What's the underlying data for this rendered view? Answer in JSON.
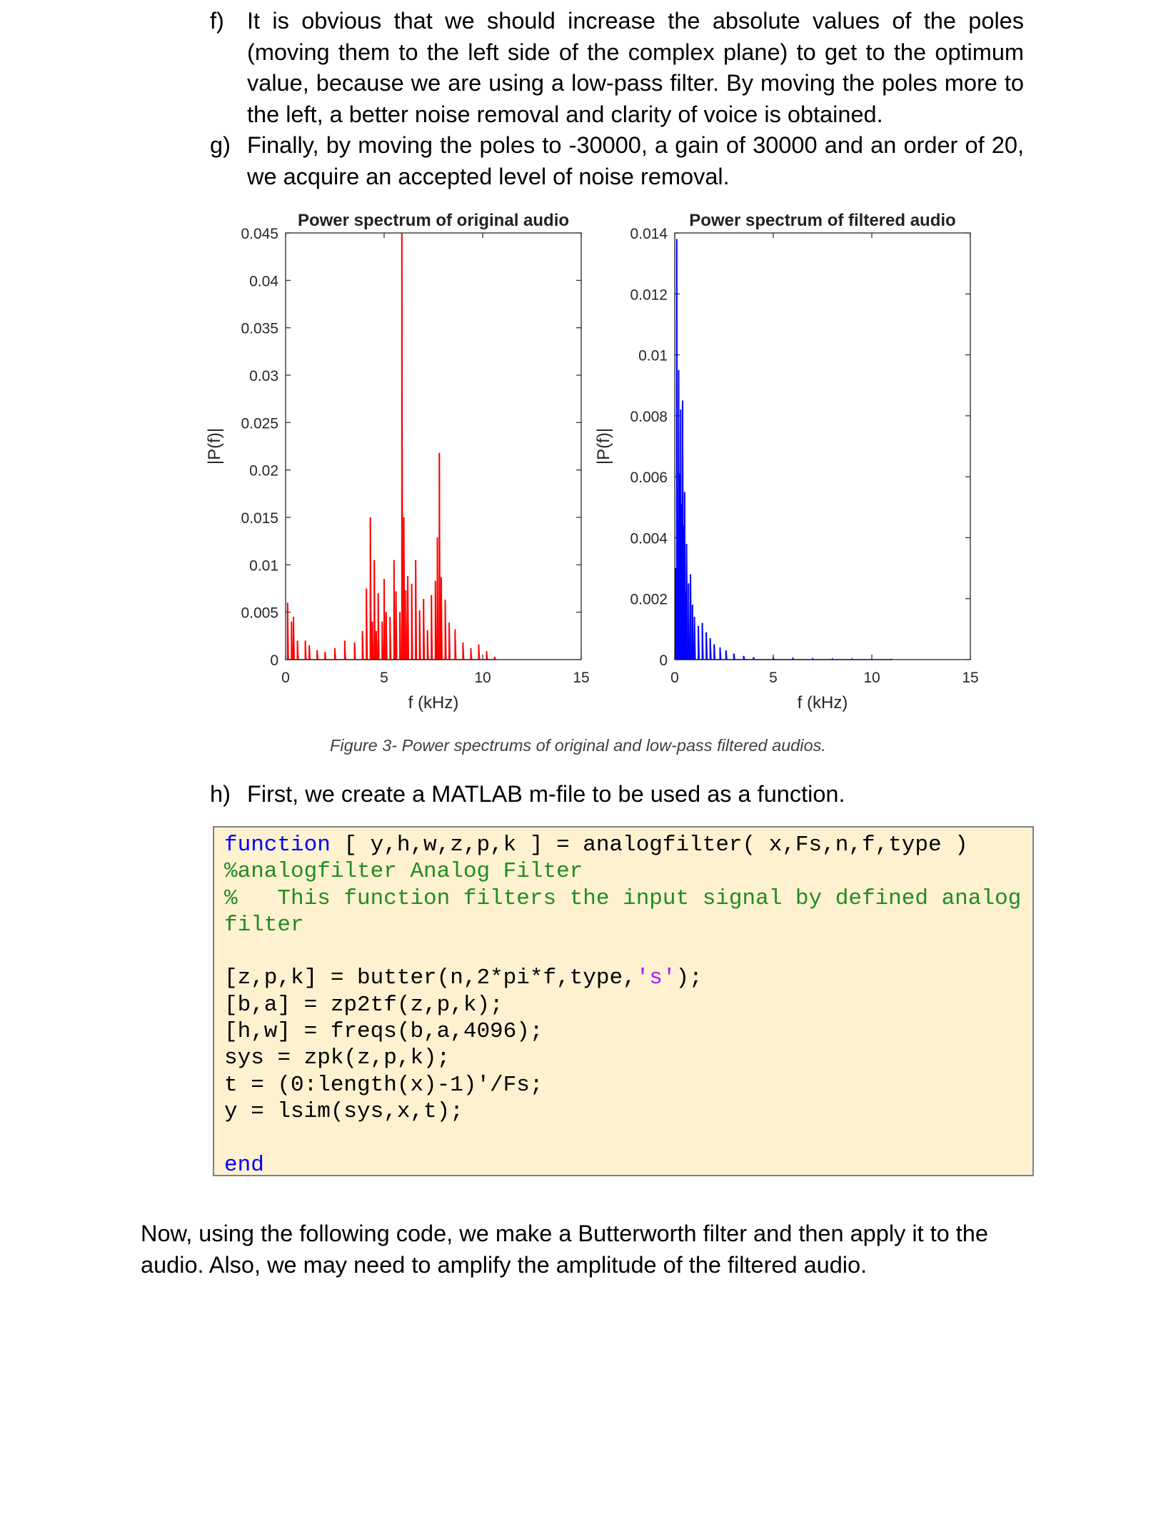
{
  "items_fg": [
    {
      "marker": "f)",
      "text": "It is obvious that we should increase the absolute values of the poles (moving them to the left side of the complex plane) to get to the optimum value, because we are using a low-pass filter. By moving the poles more to the left, a better noise removal and clarity of voice is obtained."
    },
    {
      "marker": "g)",
      "text": "Finally, by moving the poles to -30000, a gain of 30000 and an order of 20, we acquire an accepted level of noise removal."
    }
  ],
  "charts": [
    {
      "title": "Power spectrum of original audio",
      "xlabel": "f (kHz)",
      "ylabel": "|P(f)|",
      "ylim": [
        0,
        0.045
      ],
      "xlim": [
        0,
        15
      ],
      "yticks": [
        "0",
        "0.005",
        "0.01",
        "0.015",
        "0.02",
        "0.025",
        "0.03",
        "0.035",
        "0.04",
        "0.045"
      ],
      "xticks": [
        "0",
        "5",
        "10",
        "15"
      ]
    },
    {
      "title": "Power spectrum of filtered audio",
      "xlabel": "f (kHz)",
      "ylabel": "|P(f)|",
      "ylim": [
        0,
        0.014
      ],
      "xlim": [
        0,
        15
      ],
      "yticks": [
        "0",
        "0.002",
        "0.004",
        "0.006",
        "0.008",
        "0.01",
        "0.012",
        "0.014"
      ],
      "xticks": [
        "0",
        "5",
        "10",
        "15"
      ]
    }
  ],
  "chart_data": [
    {
      "type": "line",
      "title": "Power spectrum of original audio",
      "xlabel": "f (kHz)",
      "ylabel": "|P(f)|",
      "xlim": [
        0,
        15
      ],
      "ylim": [
        0,
        0.045
      ],
      "grid": false,
      "color": "#ff0000",
      "series": [
        {
          "x": [
            0.1,
            0.3,
            0.4,
            0.6,
            1.0,
            1.2,
            1.6,
            2.0,
            2.5,
            3.0,
            3.5,
            3.9,
            4.1,
            4.3,
            4.4,
            4.5,
            4.6,
            4.7,
            4.9,
            5.0,
            5.1,
            5.3,
            5.5,
            5.6,
            5.8,
            5.9,
            6.0,
            6.1,
            6.2,
            6.4,
            6.6,
            6.8,
            7.0,
            7.2,
            7.4,
            7.6,
            7.7,
            7.8,
            7.9,
            8.1,
            8.3,
            8.6,
            9.0,
            9.4,
            9.8,
            10.2,
            10.6
          ],
          "y": [
            0.006,
            0.004,
            0.0045,
            0.002,
            0.002,
            0.0015,
            0.001,
            0.0008,
            0.0012,
            0.002,
            0.0018,
            0.003,
            0.0075,
            0.015,
            0.004,
            0.0105,
            0.003,
            0.007,
            0.004,
            0.0085,
            0.005,
            0.0045,
            0.0105,
            0.0072,
            0.005,
            0.045,
            0.015,
            0.0073,
            0.0088,
            0.008,
            0.0105,
            0.0052,
            0.0064,
            0.0031,
            0.0068,
            0.0083,
            0.0129,
            0.0218,
            0.0087,
            0.0063,
            0.0039,
            0.0032,
            0.0018,
            0.0012,
            0.0016,
            0.0009,
            0.0003
          ]
        }
      ]
    },
    {
      "type": "line",
      "title": "Power spectrum of filtered audio",
      "xlabel": "f (kHz)",
      "ylabel": "|P(f)|",
      "xlim": [
        0,
        15
      ],
      "ylim": [
        0,
        0.014
      ],
      "grid": false,
      "color": "#0000ff",
      "series": [
        {
          "x": [
            0.05,
            0.1,
            0.15,
            0.2,
            0.25,
            0.3,
            0.35,
            0.4,
            0.45,
            0.5,
            0.55,
            0.6,
            0.7,
            0.8,
            0.9,
            1.0,
            1.2,
            1.4,
            1.6,
            1.8,
            2.0,
            2.3,
            2.6,
            3.0,
            3.5,
            4.0,
            5.0,
            6.0,
            7.0,
            8.0,
            9.0,
            10.0,
            11.0
          ],
          "y": [
            0.003,
            0.0138,
            0.0045,
            0.0095,
            0.0061,
            0.0082,
            0.0051,
            0.0085,
            0.0044,
            0.0055,
            0.0022,
            0.0038,
            0.0025,
            0.0028,
            0.0018,
            0.0014,
            0.0011,
            0.0012,
            0.0009,
            0.0007,
            0.0005,
            0.0004,
            0.0003,
            0.0002,
            0.00012,
            8e-05,
            5e-05,
            4e-05,
            3e-05,
            2e-05,
            2e-05,
            1e-05,
            1e-05
          ]
        }
      ]
    }
  ],
  "caption": "Figure 3- Power spectrums of original and low-pass filtered audios.",
  "item_h": {
    "marker": "h)",
    "text": "First, we create a MATLAB m-file to be used as a function."
  },
  "code": {
    "line1_kw": "function",
    "line1_rest": " [ y,h,w,z,p,k ] = analogfilter( x,Fs,n,f,type )",
    "comment1": "%analogfilter Analog Filter",
    "comment2": "%   This function filters the input signal by defined analog filter",
    "l_butter_a": "[z,p,k] = butter(n,2*pi*f,type,",
    "l_butter_s": "'s'",
    "l_butter_b": ");",
    "l_zp2tf": "[b,a] = zp2tf(z,p,k);",
    "l_freqs": "[h,w] = freqs(b,a,4096);",
    "l_sys": "sys = zpk(z,p,k);",
    "l_t": "t = (0:length(x)-1)'/Fs;",
    "l_y": "y = lsim(sys,x,t);",
    "end_kw": "end"
  },
  "paragraph": "Now, using the following code, we make a Butterworth filter and then apply it to the audio. Also, we may need to amplify the amplitude of the filtered audio."
}
